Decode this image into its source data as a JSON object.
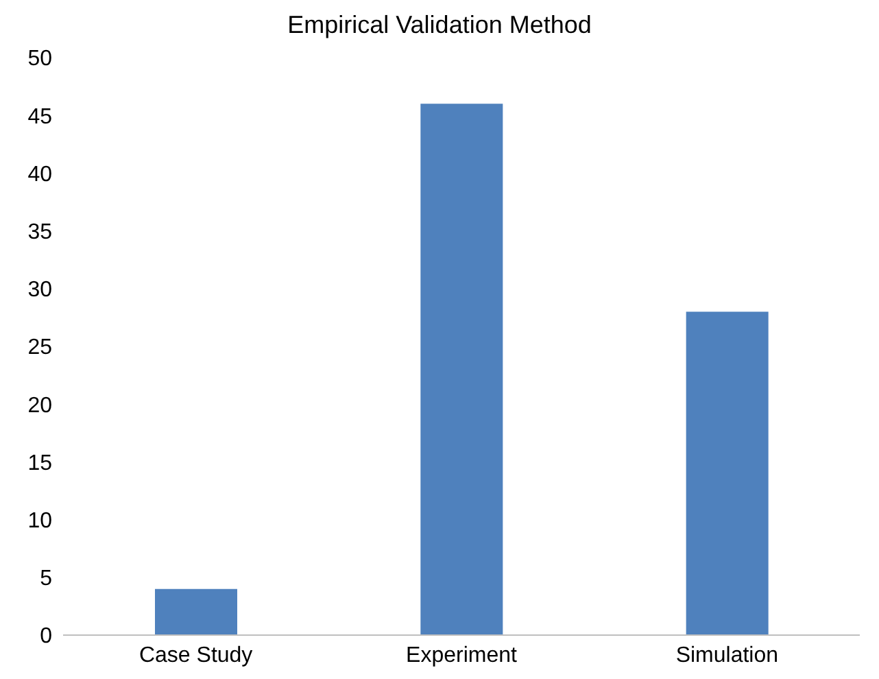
{
  "chart_data": {
    "type": "bar",
    "title": "Empirical Validation Method",
    "categories": [
      "Case Study",
      "Experiment",
      "Simulation"
    ],
    "values": [
      4,
      46,
      28
    ],
    "color": "#4f81bd",
    "ylim": [
      0,
      50
    ],
    "yticks": [
      0,
      5,
      10,
      15,
      20,
      25,
      30,
      35,
      40,
      45,
      50
    ],
    "grid": false
  }
}
